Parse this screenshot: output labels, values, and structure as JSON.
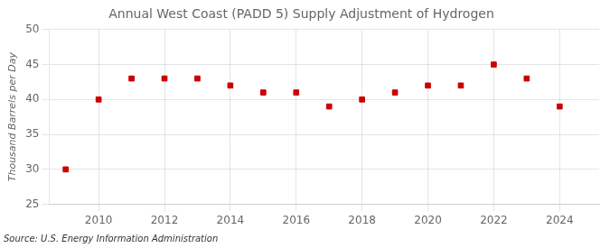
{
  "chart_data": {
    "type": "scatter",
    "title": "Annual West Coast (PADD 5) Supply Adjustment of Hydrogen",
    "ylabel": "Thousand Barrels per Day",
    "source": "Source: U.S. Energy Information Administration",
    "x": [
      2009,
      2010,
      2011,
      2012,
      2013,
      2014,
      2015,
      2016,
      2017,
      2018,
      2019,
      2020,
      2021,
      2022,
      2023,
      2024
    ],
    "values": [
      30.0,
      40.0,
      43.0,
      43.0,
      43.0,
      42.0,
      41.0,
      41.0,
      39.0,
      40.0,
      41.0,
      42.0,
      42.0,
      45.0,
      43.0,
      39.0
    ],
    "color": "#cc0000",
    "marker": "square",
    "xlim": [
      2008.5,
      2025.2
    ],
    "xticks": [
      2010,
      2012,
      2014,
      2016,
      2018,
      2020,
      2022,
      2024
    ],
    "ylim": [
      25,
      50
    ],
    "yticks": [
      25,
      30,
      35,
      40,
      45,
      50
    ],
    "grid": true
  }
}
